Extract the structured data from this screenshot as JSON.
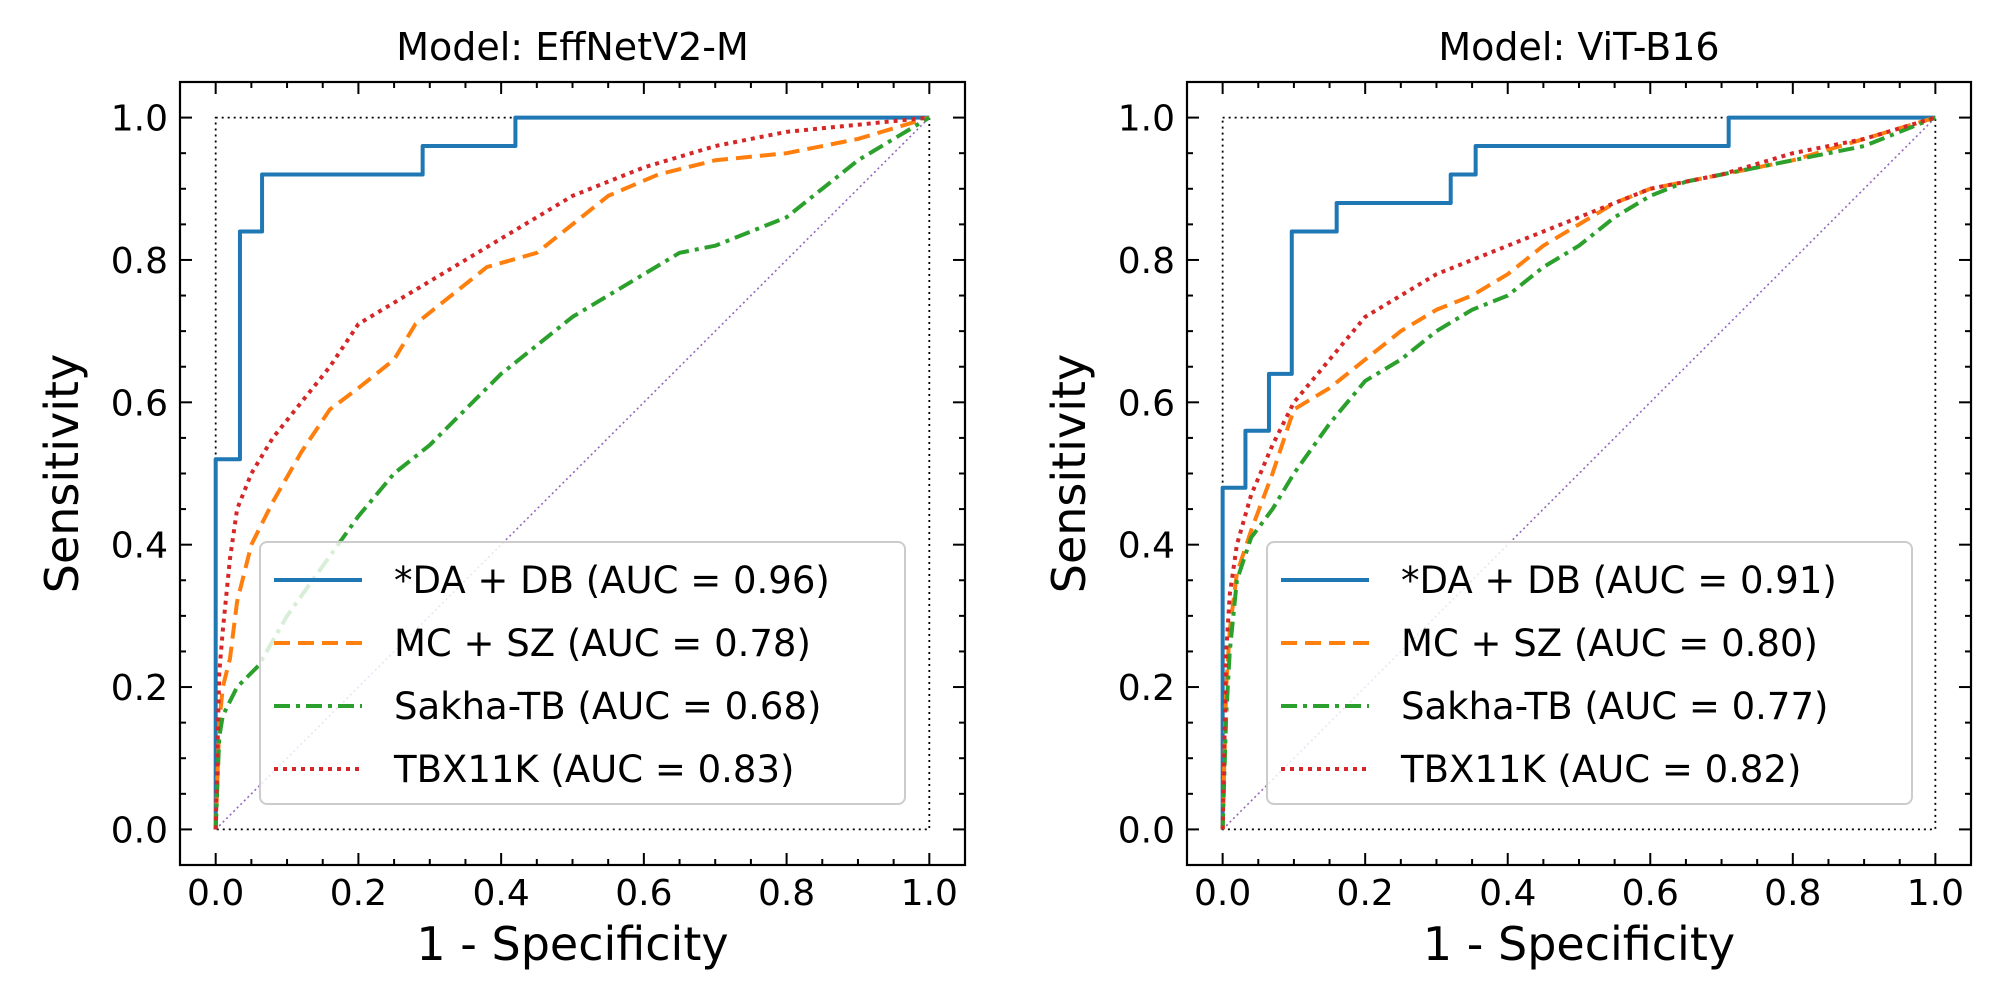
{
  "chart_data": [
    {
      "type": "line",
      "title": "Model: EffNetV2-M",
      "xlabel": "1 - Specificity",
      "ylabel": "Sensitivity",
      "xlim": [
        -0.05,
        1.05
      ],
      "ylim": [
        -0.05,
        1.05
      ],
      "xticks": [
        "0.0",
        "0.2",
        "0.4",
        "0.6",
        "0.8",
        "1.0"
      ],
      "yticks": [
        "0.0",
        "0.2",
        "0.4",
        "0.6",
        "0.8",
        "1.0"
      ],
      "grid": false,
      "legend_position": "lower-right",
      "series": [
        {
          "name": "*DA + DB (AUC = 0.96)",
          "color": "#1f77b4",
          "style": "solid",
          "x": [
            0,
            0,
            0.034,
            0.034,
            0.065,
            0.065,
            0.29,
            0.29,
            0.42,
            0.42,
            1.0
          ],
          "y": [
            0,
            0.52,
            0.52,
            0.84,
            0.84,
            0.92,
            0.92,
            0.96,
            0.96,
            1.0,
            1.0
          ]
        },
        {
          "name": "MC + SZ (AUC = 0.78)",
          "color": "#ff7f0e",
          "style": "dashed",
          "x": [
            0,
            0.005,
            0.01,
            0.02,
            0.03,
            0.05,
            0.08,
            0.12,
            0.16,
            0.2,
            0.25,
            0.28,
            0.33,
            0.38,
            0.45,
            0.5,
            0.55,
            0.62,
            0.7,
            0.8,
            0.9,
            1.0
          ],
          "y": [
            0,
            0.15,
            0.2,
            0.24,
            0.32,
            0.4,
            0.46,
            0.53,
            0.59,
            0.62,
            0.66,
            0.71,
            0.75,
            0.79,
            0.81,
            0.85,
            0.89,
            0.92,
            0.94,
            0.95,
            0.97,
            1.0
          ]
        },
        {
          "name": "Sakha-TB (AUC = 0.68)",
          "color": "#2ca02c",
          "style": "dashdot",
          "x": [
            0,
            0.005,
            0.01,
            0.03,
            0.06,
            0.1,
            0.15,
            0.2,
            0.25,
            0.3,
            0.35,
            0.4,
            0.45,
            0.5,
            0.55,
            0.6,
            0.65,
            0.7,
            0.75,
            0.8,
            0.85,
            0.9,
            0.95,
            1.0
          ],
          "y": [
            0,
            0.13,
            0.16,
            0.2,
            0.23,
            0.3,
            0.37,
            0.44,
            0.5,
            0.54,
            0.59,
            0.64,
            0.68,
            0.72,
            0.75,
            0.78,
            0.81,
            0.82,
            0.84,
            0.86,
            0.9,
            0.94,
            0.97,
            1.0
          ]
        },
        {
          "name": "TBX11K (AUC = 0.83)",
          "color": "#d62728",
          "style": "dotted",
          "x": [
            0,
            0.005,
            0.01,
            0.02,
            0.03,
            0.05,
            0.08,
            0.12,
            0.16,
            0.2,
            0.25,
            0.3,
            0.35,
            0.4,
            0.45,
            0.5,
            0.55,
            0.6,
            0.7,
            0.8,
            0.9,
            1.0
          ],
          "y": [
            0,
            0.22,
            0.28,
            0.38,
            0.45,
            0.5,
            0.55,
            0.6,
            0.65,
            0.71,
            0.74,
            0.77,
            0.8,
            0.83,
            0.86,
            0.89,
            0.91,
            0.93,
            0.96,
            0.98,
            0.99,
            1.0
          ]
        },
        {
          "color": "#9467bd",
          "style": "dotted-thin",
          "x": [
            0,
            1
          ],
          "y": [
            0,
            1
          ]
        }
      ]
    },
    {
      "type": "line",
      "title": "Model: ViT-B16",
      "xlabel": "1 - Specificity",
      "ylabel": "Sensitivity",
      "xlim": [
        -0.05,
        1.05
      ],
      "ylim": [
        -0.05,
        1.05
      ],
      "xticks": [
        "0.0",
        "0.2",
        "0.4",
        "0.6",
        "0.8",
        "1.0"
      ],
      "yticks": [
        "0.0",
        "0.2",
        "0.4",
        "0.6",
        "0.8",
        "1.0"
      ],
      "grid": false,
      "legend_position": "lower-right",
      "series": [
        {
          "name": "*DA + DB (AUC = 0.91)",
          "color": "#1f77b4",
          "style": "solid",
          "x": [
            0,
            0,
            0.032,
            0.032,
            0.065,
            0.065,
            0.097,
            0.097,
            0.16,
            0.16,
            0.32,
            0.32,
            0.355,
            0.355,
            0.71,
            0.71,
            1.0
          ],
          "y": [
            0,
            0.48,
            0.48,
            0.56,
            0.56,
            0.64,
            0.64,
            0.84,
            0.84,
            0.88,
            0.88,
            0.92,
            0.92,
            0.96,
            0.96,
            1.0,
            1.0
          ]
        },
        {
          "name": "MC + SZ (AUC = 0.80)",
          "color": "#ff7f0e",
          "style": "dashed",
          "x": [
            0,
            0.005,
            0.01,
            0.02,
            0.04,
            0.07,
            0.1,
            0.15,
            0.2,
            0.25,
            0.3,
            0.35,
            0.4,
            0.45,
            0.5,
            0.55,
            0.6,
            0.7,
            0.8,
            0.9,
            1.0
          ],
          "y": [
            0,
            0.2,
            0.28,
            0.36,
            0.42,
            0.5,
            0.59,
            0.62,
            0.66,
            0.7,
            0.73,
            0.75,
            0.78,
            0.82,
            0.85,
            0.88,
            0.9,
            0.92,
            0.94,
            0.97,
            1.0
          ]
        },
        {
          "name": "Sakha-TB (AUC = 0.77)",
          "color": "#2ca02c",
          "style": "dashdot",
          "x": [
            0,
            0.005,
            0.01,
            0.02,
            0.04,
            0.07,
            0.1,
            0.15,
            0.2,
            0.25,
            0.3,
            0.35,
            0.4,
            0.45,
            0.5,
            0.55,
            0.6,
            0.65,
            0.7,
            0.8,
            0.9,
            1.0
          ],
          "y": [
            0,
            0.16,
            0.25,
            0.35,
            0.41,
            0.45,
            0.5,
            0.57,
            0.63,
            0.66,
            0.7,
            0.73,
            0.75,
            0.79,
            0.82,
            0.86,
            0.89,
            0.91,
            0.92,
            0.94,
            0.96,
            1.0
          ]
        },
        {
          "name": "TBX11K (AUC = 0.82)",
          "color": "#d62728",
          "style": "dotted",
          "x": [
            0,
            0.005,
            0.01,
            0.02,
            0.04,
            0.07,
            0.1,
            0.15,
            0.2,
            0.25,
            0.3,
            0.35,
            0.4,
            0.45,
            0.5,
            0.55,
            0.6,
            0.7,
            0.8,
            0.9,
            1.0
          ],
          "y": [
            0,
            0.25,
            0.33,
            0.4,
            0.47,
            0.54,
            0.6,
            0.66,
            0.72,
            0.75,
            0.78,
            0.8,
            0.82,
            0.84,
            0.86,
            0.88,
            0.9,
            0.92,
            0.95,
            0.97,
            1.0
          ]
        },
        {
          "color": "#9467bd",
          "style": "dotted-thin",
          "x": [
            0,
            1
          ],
          "y": [
            0,
            1
          ]
        }
      ]
    }
  ]
}
